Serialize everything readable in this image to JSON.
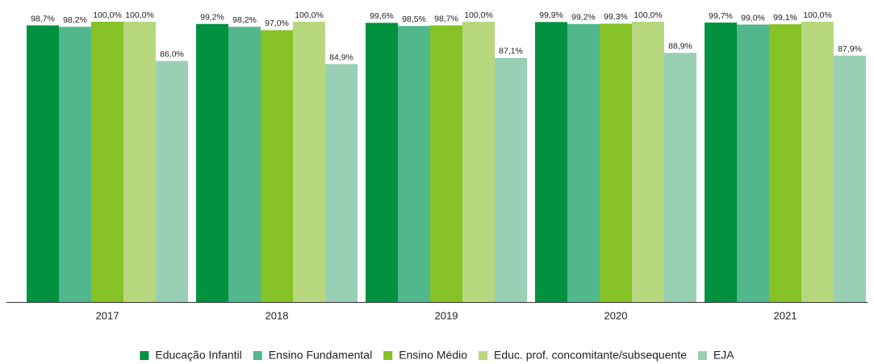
{
  "chart_data": {
    "type": "bar",
    "categories": [
      "2017",
      "2018",
      "2019",
      "2020",
      "2021"
    ],
    "ylim": [
      0,
      100
    ],
    "series": [
      {
        "name": "Educação Infantil",
        "color": "#00923f",
        "values": [
          98.7,
          99.2,
          99.6,
          99.9,
          99.7
        ],
        "value_labels": [
          "98,7%",
          "99,2%",
          "99,6%",
          "99,9%",
          "99,7%"
        ]
      },
      {
        "name": "Ensino Fundamental",
        "color": "#52b78d",
        "values": [
          98.2,
          98.2,
          98.5,
          99.2,
          99.0
        ],
        "value_labels": [
          "98,2%",
          "98,2%",
          "98,5%",
          "99,2%",
          "99,0%"
        ]
      },
      {
        "name": "Ensino Médio",
        "color": "#84c225",
        "values": [
          100.0,
          97.0,
          98.7,
          99.3,
          99.1
        ],
        "value_labels": [
          "100,0%",
          "97,0%",
          "98,7%",
          "99,3%",
          "99,1%"
        ]
      },
      {
        "name": "Educ. prof. concomitante/subsequente",
        "color": "#b7d77f",
        "values": [
          100.0,
          100.0,
          100.0,
          100.0,
          100.0
        ],
        "value_labels": [
          "100,0%",
          "100,0%",
          "100,0%",
          "100,0%",
          "100,0%"
        ]
      },
      {
        "name": "EJA",
        "color": "#99d0b5",
        "values": [
          86.0,
          84.9,
          87.1,
          88.9,
          87.9
        ],
        "value_labels": [
          "86,0%",
          "84,9%",
          "87,1%",
          "88,9%",
          "87,9%"
        ]
      }
    ]
  }
}
